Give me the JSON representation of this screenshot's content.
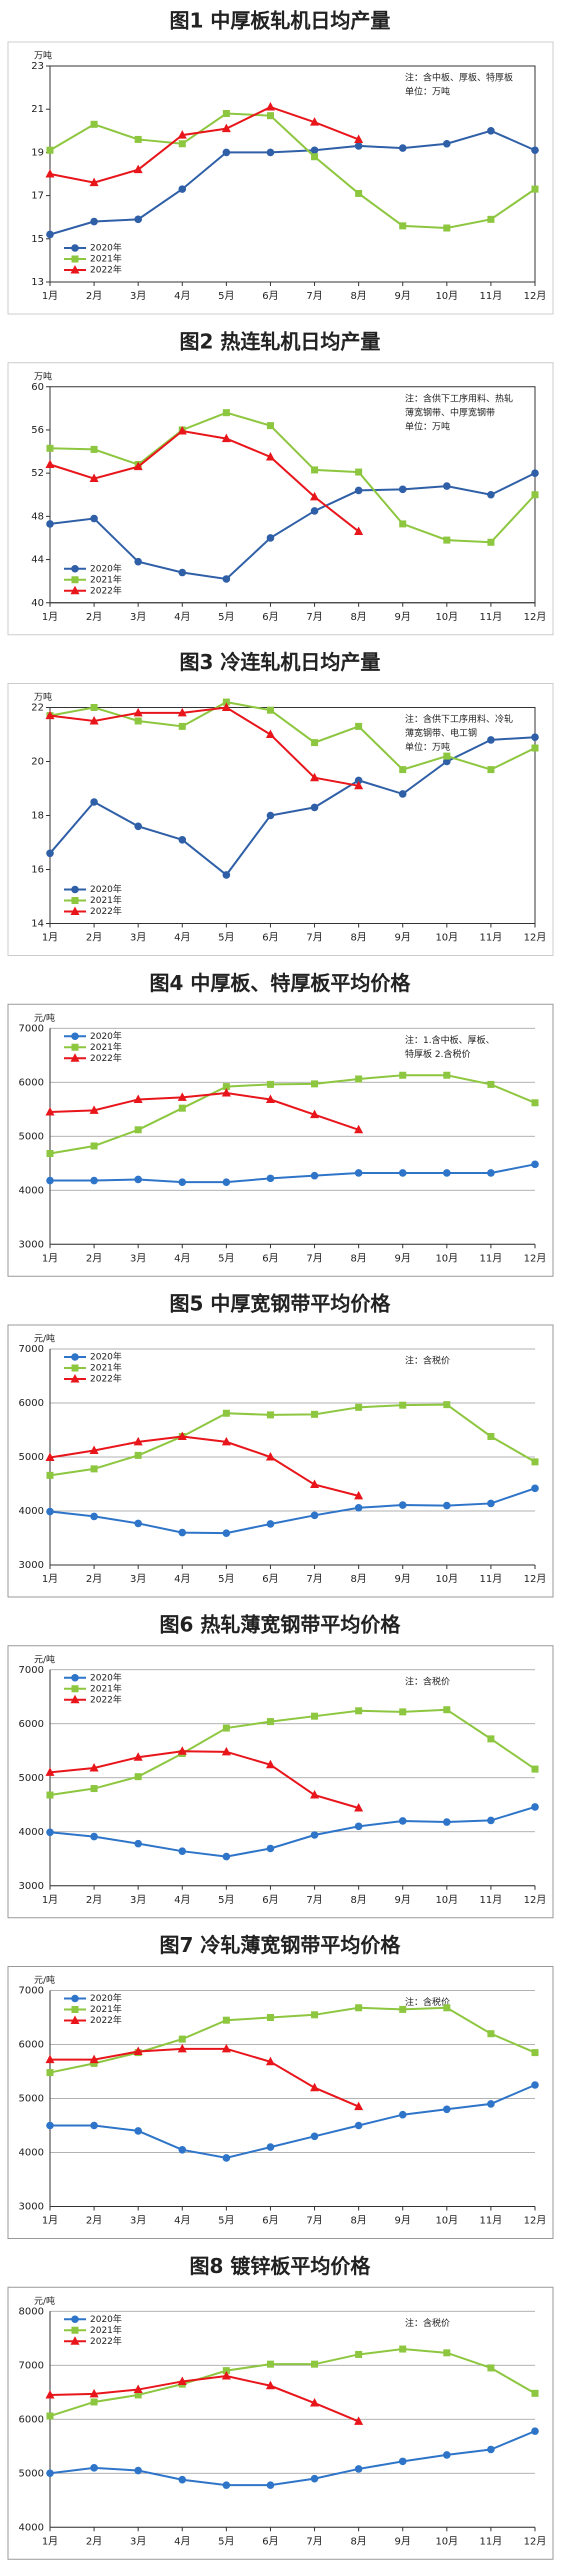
{
  "chart_data": [
    {
      "type": "line",
      "title": "图1 中厚板轧机日均产量",
      "unit": "万吨",
      "note": [
        "注：含中板、厚板、特厚板",
        "单位：万吨"
      ],
      "grid": false,
      "legend": "lower left",
      "categories": [
        "1月",
        "2月",
        "3月",
        "4月",
        "5月",
        "6月",
        "7月",
        "8月",
        "9月",
        "10月",
        "11月",
        "12月"
      ],
      "ylim": [
        13,
        23
      ],
      "yticks": [
        13,
        15,
        17,
        19,
        21,
        23
      ],
      "series": [
        {
          "name": "2020年",
          "color": "#2f5fa7",
          "marker": "circle",
          "values": [
            15.2,
            15.8,
            15.9,
            17.3,
            19.0,
            19.0,
            19.1,
            19.3,
            19.2,
            19.4,
            20.0,
            19.1
          ]
        },
        {
          "name": "2021年",
          "color": "#8dc63f",
          "marker": "square",
          "values": [
            19.1,
            20.3,
            19.6,
            19.4,
            20.8,
            20.7,
            18.8,
            17.1,
            15.6,
            15.5,
            15.9,
            17.3
          ]
        },
        {
          "name": "2022年",
          "color": "#e8151b",
          "marker": "triangle",
          "values": [
            18.0,
            17.6,
            18.2,
            19.8,
            20.1,
            21.1,
            20.4,
            19.6,
            null,
            null,
            null,
            null
          ]
        }
      ]
    },
    {
      "type": "line",
      "title": "图2 热连轧机日均产量",
      "unit": "万吨",
      "note": [
        "注：含供下工序用料、热轧",
        "薄宽钢带、中厚宽钢带",
        "单位：万吨"
      ],
      "grid": false,
      "legend": "lower left",
      "categories": [
        "1月",
        "2月",
        "3月",
        "4月",
        "5月",
        "6月",
        "7月",
        "8月",
        "9月",
        "10月",
        "11月",
        "12月"
      ],
      "ylim": [
        40,
        60
      ],
      "yticks": [
        40,
        44,
        48,
        52,
        56,
        60
      ],
      "series": [
        {
          "name": "2020年",
          "color": "#2f5fa7",
          "marker": "circle",
          "values": [
            47.3,
            47.8,
            43.8,
            42.8,
            42.2,
            46.0,
            48.5,
            50.4,
            50.5,
            50.8,
            50.0,
            52.0
          ]
        },
        {
          "name": "2021年",
          "color": "#8dc63f",
          "marker": "square",
          "values": [
            54.3,
            54.2,
            52.8,
            56.0,
            57.6,
            56.4,
            52.3,
            52.1,
            47.3,
            45.8,
            45.6,
            50.0
          ]
        },
        {
          "name": "2022年",
          "color": "#e8151b",
          "marker": "triangle",
          "values": [
            52.8,
            51.5,
            52.6,
            55.9,
            55.2,
            53.5,
            49.8,
            46.6,
            null,
            null,
            null,
            null
          ]
        }
      ]
    },
    {
      "type": "line",
      "title": "图3 冷连轧机日均产量",
      "unit": "万吨",
      "note": [
        "注：含供下工序用料、冷轧",
        "薄宽钢带、电工钢",
        "单位：万吨"
      ],
      "grid": false,
      "legend": "lower left",
      "categories": [
        "1月",
        "2月",
        "3月",
        "4月",
        "5月",
        "6月",
        "7月",
        "8月",
        "9月",
        "10月",
        "11月",
        "12月"
      ],
      "ylim": [
        14,
        22
      ],
      "yticks": [
        14,
        16,
        18,
        20,
        22
      ],
      "series": [
        {
          "name": "2020年",
          "color": "#2f5fa7",
          "marker": "circle",
          "values": [
            16.6,
            18.5,
            17.6,
            17.1,
            15.8,
            18.0,
            18.3,
            19.3,
            18.8,
            20.0,
            20.8,
            20.9
          ]
        },
        {
          "name": "2021年",
          "color": "#8dc63f",
          "marker": "square",
          "values": [
            21.7,
            22.0,
            21.5,
            21.3,
            22.2,
            21.9,
            20.7,
            21.3,
            19.7,
            20.2,
            19.7,
            20.5
          ]
        },
        {
          "name": "2022年",
          "color": "#e8151b",
          "marker": "triangle",
          "values": [
            21.7,
            21.5,
            21.8,
            21.8,
            22.0,
            21.0,
            19.4,
            19.1,
            null,
            null,
            null,
            null
          ]
        }
      ]
    },
    {
      "type": "line",
      "title": "图4 中厚板、特厚板平均价格",
      "unit": "元/吨",
      "note": [
        "注：1.含中板、厚板、",
        "特厚板  2.含税价"
      ],
      "grid": true,
      "legend": "upper left",
      "categories": [
        "1月",
        "2月",
        "3月",
        "4月",
        "5月",
        "6月",
        "7月",
        "8月",
        "9月",
        "10月",
        "11月",
        "12月"
      ],
      "ylim": [
        3000,
        7000
      ],
      "yticks": [
        3000,
        4000,
        5000,
        6000,
        7000
      ],
      "series": [
        {
          "name": "2020年",
          "color": "#2e75c9",
          "marker": "circle",
          "values": [
            4180,
            4180,
            4200,
            4150,
            4150,
            4220,
            4270,
            4320,
            4320,
            4320,
            4320,
            4480
          ]
        },
        {
          "name": "2021年",
          "color": "#8dc63f",
          "marker": "square",
          "values": [
            4680,
            4820,
            5120,
            5520,
            5920,
            5960,
            5970,
            6060,
            6130,
            6130,
            5960,
            5620
          ]
        },
        {
          "name": "2022年",
          "color": "#e8151b",
          "marker": "triangle",
          "values": [
            5450,
            5480,
            5680,
            5720,
            5800,
            5680,
            5400,
            5120,
            null,
            null,
            null,
            null
          ]
        }
      ]
    },
    {
      "type": "line",
      "title": "图5 中厚宽钢带平均价格",
      "unit": "元/吨",
      "note": [
        "注：含税价"
      ],
      "grid": true,
      "legend": "upper left",
      "categories": [
        "1月",
        "2月",
        "3月",
        "4月",
        "5月",
        "6月",
        "7月",
        "8月",
        "9月",
        "10月",
        "11月",
        "12月"
      ],
      "ylim": [
        3000,
        7000
      ],
      "yticks": [
        3000,
        4000,
        5000,
        6000,
        7000
      ],
      "series": [
        {
          "name": "2020年",
          "color": "#2e75c9",
          "marker": "circle",
          "values": [
            3990,
            3900,
            3770,
            3600,
            3590,
            3760,
            3920,
            4060,
            4110,
            4100,
            4140,
            4420
          ]
        },
        {
          "name": "2021年",
          "color": "#8dc63f",
          "marker": "square",
          "values": [
            4660,
            4780,
            5030,
            5380,
            5810,
            5780,
            5790,
            5920,
            5960,
            5970,
            5380,
            4910
          ]
        },
        {
          "name": "2022年",
          "color": "#e8151b",
          "marker": "triangle",
          "values": [
            4990,
            5120,
            5280,
            5380,
            5280,
            5000,
            4490,
            4280,
            null,
            null,
            null,
            null
          ]
        }
      ]
    },
    {
      "type": "line",
      "title": "图6 热轧薄宽钢带平均价格",
      "unit": "元/吨",
      "note": [
        "注：含税价"
      ],
      "grid": true,
      "legend": "upper left",
      "categories": [
        "1月",
        "2月",
        "3月",
        "4月",
        "5月",
        "6月",
        "7月",
        "8月",
        "9月",
        "10月",
        "11月",
        "12月"
      ],
      "ylim": [
        3000,
        7000
      ],
      "yticks": [
        3000,
        4000,
        5000,
        6000,
        7000
      ],
      "series": [
        {
          "name": "2020年",
          "color": "#2e75c9",
          "marker": "circle",
          "values": [
            3990,
            3910,
            3780,
            3640,
            3540,
            3690,
            3940,
            4100,
            4200,
            4180,
            4210,
            4460
          ]
        },
        {
          "name": "2021年",
          "color": "#8dc63f",
          "marker": "square",
          "values": [
            4680,
            4800,
            5020,
            5450,
            5920,
            6040,
            6140,
            6240,
            6220,
            6260,
            5720,
            5160
          ]
        },
        {
          "name": "2022年",
          "color": "#e8151b",
          "marker": "triangle",
          "values": [
            5100,
            5180,
            5380,
            5490,
            5480,
            5240,
            4680,
            4440,
            null,
            null,
            null,
            null
          ]
        }
      ]
    },
    {
      "type": "line",
      "title": "图7 冷轧薄宽钢带平均价格",
      "unit": "元/吨",
      "note": [
        "注：含税价"
      ],
      "grid": true,
      "legend": "upper left",
      "categories": [
        "1月",
        "2月",
        "3月",
        "4月",
        "5月",
        "6月",
        "7月",
        "8月",
        "9月",
        "10月",
        "11月",
        "12月"
      ],
      "ylim": [
        3000,
        7000
      ],
      "yticks": [
        3000,
        4000,
        5000,
        6000,
        7000
      ],
      "series": [
        {
          "name": "2020年",
          "color": "#2e75c9",
          "marker": "circle",
          "values": [
            4500,
            4500,
            4400,
            4050,
            3900,
            4100,
            4300,
            4500,
            4700,
            4800,
            4900,
            5250
          ]
        },
        {
          "name": "2021年",
          "color": "#8dc63f",
          "marker": "square",
          "values": [
            5480,
            5650,
            5850,
            6100,
            6450,
            6500,
            6550,
            6680,
            6650,
            6680,
            6200,
            5850
          ]
        },
        {
          "name": "2022年",
          "color": "#e8151b",
          "marker": "triangle",
          "values": [
            5720,
            5720,
            5870,
            5920,
            5920,
            5680,
            5200,
            4850,
            null,
            null,
            null,
            null
          ]
        }
      ]
    },
    {
      "type": "line",
      "title": "图8 镀锌板平均价格",
      "unit": "元/吨",
      "note": [
        "注：含税价"
      ],
      "grid": true,
      "legend": "upper left",
      "categories": [
        "1月",
        "2月",
        "3月",
        "4月",
        "5月",
        "6月",
        "7月",
        "8月",
        "9月",
        "10月",
        "11月",
        "12月"
      ],
      "ylim": [
        4000,
        8000
      ],
      "yticks": [
        4000,
        5000,
        6000,
        7000,
        8000
      ],
      "series": [
        {
          "name": "2020年",
          "color": "#2e75c9",
          "marker": "circle",
          "values": [
            5000,
            5100,
            5050,
            4880,
            4780,
            4780,
            4900,
            5080,
            5220,
            5340,
            5440,
            5780
          ]
        },
        {
          "name": "2021年",
          "color": "#8dc63f",
          "marker": "square",
          "values": [
            6060,
            6320,
            6450,
            6650,
            6900,
            7020,
            7020,
            7200,
            7300,
            7230,
            6950,
            6480
          ]
        },
        {
          "name": "2022年",
          "color": "#e8151b",
          "marker": "triangle",
          "values": [
            6450,
            6470,
            6550,
            6700,
            6800,
            6620,
            6300,
            5960,
            null,
            null,
            null,
            null
          ]
        }
      ]
    }
  ]
}
